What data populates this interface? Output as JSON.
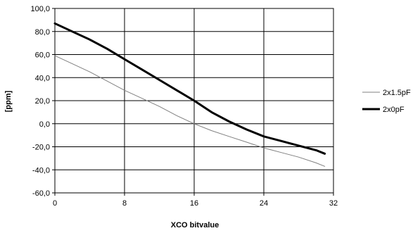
{
  "chart_data": {
    "type": "line",
    "xlabel": "XCO bitvalue",
    "ylabel": "[ppm]",
    "xlim": [
      0,
      32
    ],
    "ylim": [
      -60,
      100
    ],
    "x_ticks": [
      0,
      8,
      16,
      24,
      32
    ],
    "x_tick_labels": [
      "0",
      "8",
      "16",
      "24",
      "32"
    ],
    "y_ticks": [
      100,
      80,
      60,
      40,
      20,
      0,
      -20,
      -40,
      -60
    ],
    "y_tick_labels": [
      "100,0",
      "80,0",
      "60,0",
      "40,0",
      "20,0",
      "0,0",
      "-20,0",
      "-40,0",
      "-60,0"
    ],
    "grid": true,
    "legend_position": "right",
    "series": [
      {
        "name": "2x1.5pF",
        "color": "#808080",
        "line_style": "thin",
        "x": [
          0,
          2,
          4,
          6,
          8,
          10,
          12,
          14,
          16,
          18,
          20,
          22,
          24,
          26,
          28,
          30,
          31
        ],
        "y": [
          59,
          52,
          45,
          37,
          29,
          22,
          15,
          7,
          0,
          -6,
          -11,
          -16,
          -21,
          -25,
          -29,
          -34,
          -37
        ]
      },
      {
        "name": "2x0pF",
        "color": "#000000",
        "line_style": "thick",
        "x": [
          0,
          2,
          4,
          6,
          8,
          10,
          12,
          14,
          16,
          18,
          20,
          22,
          24,
          26,
          28,
          30,
          31
        ],
        "y": [
          87,
          80,
          73,
          65,
          56,
          47,
          38,
          29,
          20,
          10,
          2,
          -5,
          -11,
          -15,
          -19,
          -23,
          -26
        ]
      }
    ]
  }
}
